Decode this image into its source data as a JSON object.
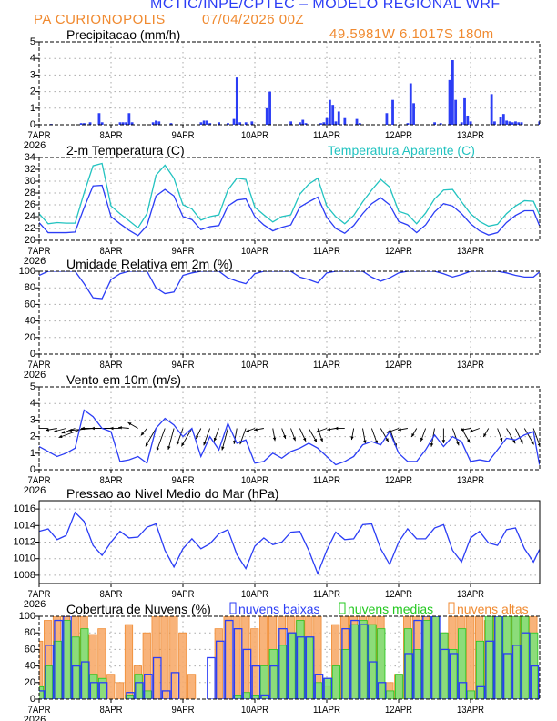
{
  "header": {
    "title": "MCTIC/INPE/CPTEC – MODELO REGIONAL WRF",
    "location": "PA CURIONOPOLIS",
    "run": "07/04/2026 00Z",
    "coords": "49.5981W 6.1017S 180m",
    "title_color": "#2b3df5",
    "sub_color": "#f08a30"
  },
  "x_axis": {
    "ticks": [
      "7APR",
      "8APR",
      "9APR",
      "10APR",
      "11APR",
      "12APR",
      "13APR"
    ],
    "year": "2026",
    "hours_range": [
      0,
      167
    ],
    "step_hours": 3
  },
  "chart_data": [
    {
      "type": "bar",
      "title": "Precipitacao (mm/h)",
      "ylim": [
        0,
        5
      ],
      "yticks": [
        0,
        1,
        2,
        3,
        4,
        5
      ],
      "grid": true,
      "color": "#2b3df5",
      "points_hour_value": [
        [
          4,
          0.05
        ],
        [
          14,
          0.1
        ],
        [
          15,
          0.1
        ],
        [
          17,
          0.15
        ],
        [
          20,
          0.7
        ],
        [
          21,
          0.15
        ],
        [
          27,
          0.15
        ],
        [
          28,
          0.15
        ],
        [
          29,
          0.15
        ],
        [
          30,
          0.7
        ],
        [
          31,
          0.15
        ],
        [
          38,
          0.15
        ],
        [
          39,
          0.25
        ],
        [
          40,
          0.2
        ],
        [
          44,
          0.1
        ],
        [
          54,
          0.15
        ],
        [
          55,
          0.25
        ],
        [
          56,
          0.25
        ],
        [
          57,
          0.1
        ],
        [
          60,
          0.15
        ],
        [
          63,
          0.1
        ],
        [
          65,
          0.35
        ],
        [
          66,
          2.85
        ],
        [
          67,
          0.15
        ],
        [
          69,
          0.15
        ],
        [
          71,
          0.2
        ],
        [
          76,
          1.0
        ],
        [
          77,
          2.0
        ],
        [
          84,
          0.2
        ],
        [
          87,
          0.15
        ],
        [
          88,
          0.3
        ],
        [
          89,
          0.1
        ],
        [
          94,
          0.1
        ],
        [
          95,
          0.15
        ],
        [
          96,
          0.4
        ],
        [
          97,
          1.5
        ],
        [
          98,
          1.2
        ],
        [
          99,
          0.2
        ],
        [
          100,
          0.8
        ],
        [
          102,
          0.4
        ],
        [
          106,
          0.35
        ],
        [
          107,
          0.1
        ],
        [
          116,
          0.7
        ],
        [
          118,
          1.5
        ],
        [
          123,
          0.1
        ],
        [
          124,
          2.5
        ],
        [
          125,
          1.3
        ],
        [
          132,
          0.15
        ],
        [
          134,
          0.1
        ],
        [
          137,
          2.7
        ],
        [
          138,
          3.9
        ],
        [
          139,
          1.5
        ],
        [
          141,
          0.15
        ],
        [
          142,
          1.6
        ],
        [
          143,
          0.55
        ],
        [
          144,
          0.2
        ],
        [
          151,
          1.85
        ],
        [
          152,
          0.2
        ],
        [
          154,
          0.45
        ],
        [
          155,
          0.65
        ],
        [
          156,
          0.25
        ],
        [
          157,
          0.2
        ],
        [
          158,
          0.15
        ],
        [
          159,
          0.2
        ],
        [
          160,
          0.15
        ],
        [
          161,
          0.15
        ],
        [
          167,
          0.2
        ]
      ]
    },
    {
      "type": "line",
      "title": "2-m Temperatura (C)",
      "ylim": [
        20,
        34
      ],
      "yticks": [
        20,
        22,
        24,
        26,
        28,
        30,
        32,
        34
      ],
      "grid": true,
      "series": [
        {
          "name": "2-m Temperatura (C)",
          "color": "#2b3df5",
          "values": [
            23.0,
            21.3,
            21.3,
            21.3,
            21.4,
            25.5,
            29.2,
            29.3,
            24.0,
            22.8,
            21.7,
            20.8,
            22.5,
            27.5,
            28.6,
            27.5,
            24.0,
            23.5,
            21.8,
            22.3,
            22.5,
            25.8,
            26.8,
            27.0,
            24.0,
            22.6,
            21.6,
            22.2,
            22.6,
            25.6,
            26.5,
            27.3,
            23.9,
            22.0,
            21.2,
            22.5,
            24.5,
            26.2,
            27.2,
            26.0,
            23.2,
            22.6,
            21.3,
            22.6,
            24.8,
            26.2,
            25.8,
            24.5,
            22.8,
            21.6,
            20.9,
            21.3,
            23.0,
            24.2,
            25.0,
            25.0,
            22.5
          ]
        },
        {
          "name": "Temperatura Aparente (C)",
          "color": "#22c3c0",
          "values": [
            24.5,
            22.8,
            23.0,
            22.9,
            22.9,
            28.0,
            32.6,
            33.0,
            25.8,
            24.5,
            23.3,
            22.1,
            24.5,
            31.0,
            32.7,
            30.5,
            26.0,
            25.3,
            23.4,
            24.0,
            24.3,
            28.5,
            30.5,
            30.3,
            25.6,
            24.3,
            23.1,
            24.0,
            24.3,
            27.8,
            29.5,
            30.5,
            25.8,
            24.0,
            22.8,
            24.2,
            26.5,
            28.5,
            30.3,
            29.0,
            24.9,
            24.4,
            22.8,
            24.6,
            27.0,
            28.5,
            28.6,
            26.5,
            24.5,
            23.2,
            22.4,
            22.7,
            24.5,
            25.8,
            26.7,
            26.6,
            24.3
          ]
        }
      ]
    },
    {
      "type": "line",
      "title": "Umidade Relativa em 2m (%)",
      "ylim": [
        0,
        100
      ],
      "yticks": [
        0,
        20,
        40,
        60,
        80,
        100
      ],
      "grid": true,
      "series": [
        {
          "color": "#2b3df5",
          "values": [
            95,
            100,
            100,
            100,
            100,
            85,
            68,
            67,
            90,
            97,
            100,
            100,
            100,
            80,
            73,
            75,
            95,
            98,
            100,
            100,
            100,
            92,
            88,
            85,
            97,
            100,
            100,
            100,
            100,
            93,
            90,
            86,
            98,
            100,
            100,
            100,
            100,
            93,
            88,
            92,
            98,
            100,
            100,
            100,
            100,
            97,
            93,
            96,
            100,
            100,
            100,
            100,
            98,
            95,
            93,
            93,
            99
          ]
        }
      ]
    },
    {
      "type": "line",
      "title": "Vento em 10m (m/s)",
      "ylim": [
        0,
        5
      ],
      "yticks": [
        0,
        1,
        2,
        3,
        4,
        5
      ],
      "grid": true,
      "series": [
        {
          "color": "#2b3df5",
          "values": [
            1.4,
            1.1,
            0.8,
            1.0,
            1.3,
            3.6,
            3.2,
            2.5,
            2.3,
            0.5,
            0.6,
            0.8,
            0.4,
            2.5,
            3.1,
            2.7,
            2.0,
            2.5,
            0.8,
            2.0,
            1.2,
            2.8,
            1.6,
            1.8,
            0.4,
            0.5,
            1.0,
            0.7,
            1.1,
            1.3,
            1.6,
            1.3,
            0.8,
            0.3,
            0.5,
            0.8,
            1.5,
            1.7,
            1.5,
            2.3,
            1.0,
            0.5,
            0.5,
            1.2,
            2.1,
            1.4,
            2.0,
            1.7,
            0.5,
            0.6,
            0.5,
            1.2,
            1.9,
            1.8,
            2.1,
            2.3,
            0.3
          ]
        }
      ],
      "vectors": {
        "color": "#000000",
        "baseline": 2.5,
        "direction_to_deg": [
          170,
          180,
          190,
          195,
          200,
          200,
          185,
          180,
          180,
          180,
          175,
          150,
          230,
          240,
          250,
          255,
          250,
          240,
          245,
          250,
          250,
          255,
          260,
          250,
          200,
          190,
          280,
          290,
          290,
          295,
          300,
          290,
          200,
          190,
          180,
          260,
          280,
          290,
          300,
          290,
          200,
          190,
          240,
          250,
          260,
          270,
          290,
          300,
          190,
          200,
          240,
          290,
          300,
          295,
          300,
          290,
          280
        ]
      }
    },
    {
      "type": "line",
      "title": "Pressao ao Nivel Medio do Mar (hPa)",
      "ylim": [
        1007,
        1017
      ],
      "yticks": [
        1008,
        1010,
        1012,
        1014,
        1016
      ],
      "grid": true,
      "series": [
        {
          "color": "#2b3df5",
          "values": [
            1013.3,
            1013.6,
            1012.3,
            1012.8,
            1015.6,
            1014.5,
            1011.6,
            1010.4,
            1012.0,
            1013.3,
            1012.5,
            1012.6,
            1013.8,
            1014.2,
            1011.0,
            1009.0,
            1011.2,
            1012.4,
            1011.2,
            1011.8,
            1013.0,
            1013.5,
            1010.5,
            1008.8,
            1011.5,
            1012.5,
            1011.7,
            1012.0,
            1013.2,
            1013.3,
            1011.0,
            1008.2,
            1011.0,
            1013.2,
            1012.3,
            1012.4,
            1014.1,
            1014.2,
            1011.2,
            1009.3,
            1012.0,
            1013.6,
            1012.4,
            1012.4,
            1013.7,
            1014.1,
            1011.0,
            1009.6,
            1012.5,
            1013.3,
            1011.9,
            1011.6,
            1013.5,
            1013.7,
            1011.2,
            1009.6,
            1011.1
          ]
        }
      ]
    },
    {
      "type": "bar",
      "title": "Cobertura de Nuvens (%)",
      "ylim": [
        0,
        100
      ],
      "yticks": [
        0,
        20,
        40,
        60,
        80,
        100
      ],
      "grid": true,
      "legend_placement": "top",
      "series": [
        {
          "name": "nuvens altas",
          "color": "#f08a30",
          "fill": "#f7ab6c",
          "values": [
            70,
            95,
            100,
            100,
            100,
            100,
            78,
            85,
            30,
            20,
            90,
            40,
            80,
            100,
            100,
            100,
            80,
            30,
            0,
            0,
            85,
            100,
            100,
            100,
            85,
            100,
            100,
            100,
            100,
            100,
            100,
            100,
            15,
            90,
            100,
            100,
            100,
            100,
            100,
            20,
            30,
            100,
            100,
            100,
            100,
            80,
            100,
            100,
            100,
            100,
            95,
            100,
            100,
            100,
            100,
            100,
            20
          ]
        },
        {
          "name": "nuvens medias",
          "color": "#22c81e",
          "fill": "#7fe07a",
          "values": [
            15,
            40,
            70,
            95,
            75,
            85,
            30,
            25,
            0,
            0,
            5,
            30,
            10,
            0,
            0,
            0,
            0,
            0,
            0,
            0,
            0,
            0,
            5,
            8,
            5,
            40,
            60,
            65,
            80,
            95,
            75,
            20,
            25,
            40,
            60,
            90,
            95,
            90,
            85,
            10,
            30,
            85,
            60,
            95,
            100,
            80,
            60,
            85,
            10,
            70,
            100,
            100,
            100,
            100,
            100,
            80,
            5
          ]
        },
        {
          "name": "nuvens baixas",
          "color": "#2b3df5",
          "fill": "#6d7cf0",
          "values": [
            10,
            65,
            95,
            100,
            40,
            45,
            20,
            20,
            0,
            0,
            8,
            20,
            30,
            50,
            10,
            32,
            0,
            0,
            0,
            50,
            70,
            95,
            85,
            60,
            40,
            5,
            40,
            85,
            80,
            75,
            75,
            30,
            25,
            0,
            85,
            95,
            90,
            45,
            20,
            0,
            0,
            55,
            95,
            100,
            100,
            60,
            55,
            20,
            0,
            15,
            70,
            100,
            55,
            65,
            80,
            40,
            10
          ]
        }
      ]
    }
  ]
}
